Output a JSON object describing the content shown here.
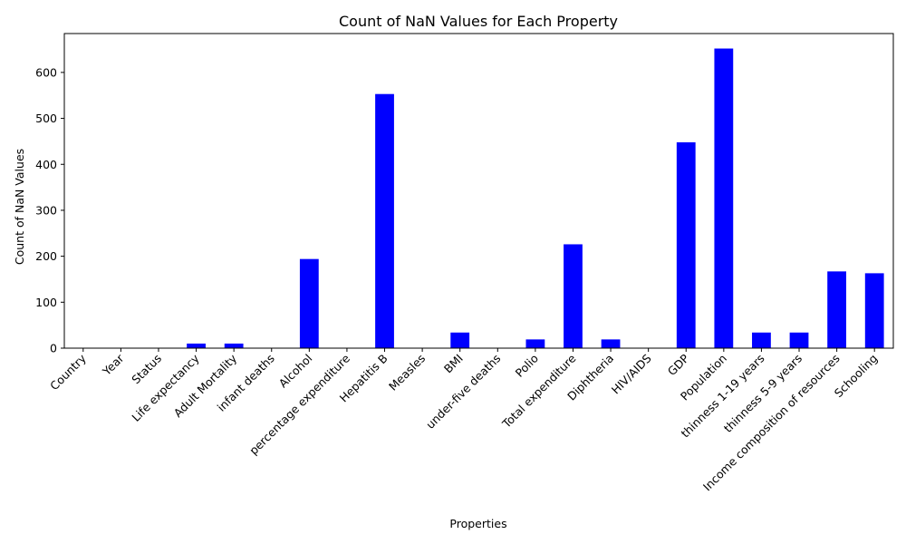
{
  "chart_data": {
    "type": "bar",
    "title": "Count of NaN Values for Each Property",
    "xlabel": "Properties",
    "ylabel": "Count of NaN Values",
    "categories": [
      "Country",
      "Year",
      "Status",
      "Life expectancy",
      "Adult Mortality",
      "infant deaths",
      "Alcohol",
      "percentage expenditure",
      "Hepatitis B",
      "Measles",
      "BMI",
      "under-five deaths",
      "Polio",
      "Total expenditure",
      "Diphtheria",
      "HIV/AIDS",
      "GDP",
      "Population",
      "thinness  1-19 years",
      "thinness 5-9 years",
      "Income composition of resources",
      "Schooling"
    ],
    "values": [
      0,
      0,
      0,
      10,
      10,
      0,
      194,
      0,
      553,
      0,
      34,
      0,
      19,
      226,
      19,
      0,
      448,
      652,
      34,
      34,
      167,
      163
    ],
    "ylim": [
      0,
      684.6
    ],
    "yticks": [
      0,
      100,
      200,
      300,
      400,
      500,
      600
    ],
    "bar_color": "#0000ff",
    "grid": false,
    "legend": false
  }
}
